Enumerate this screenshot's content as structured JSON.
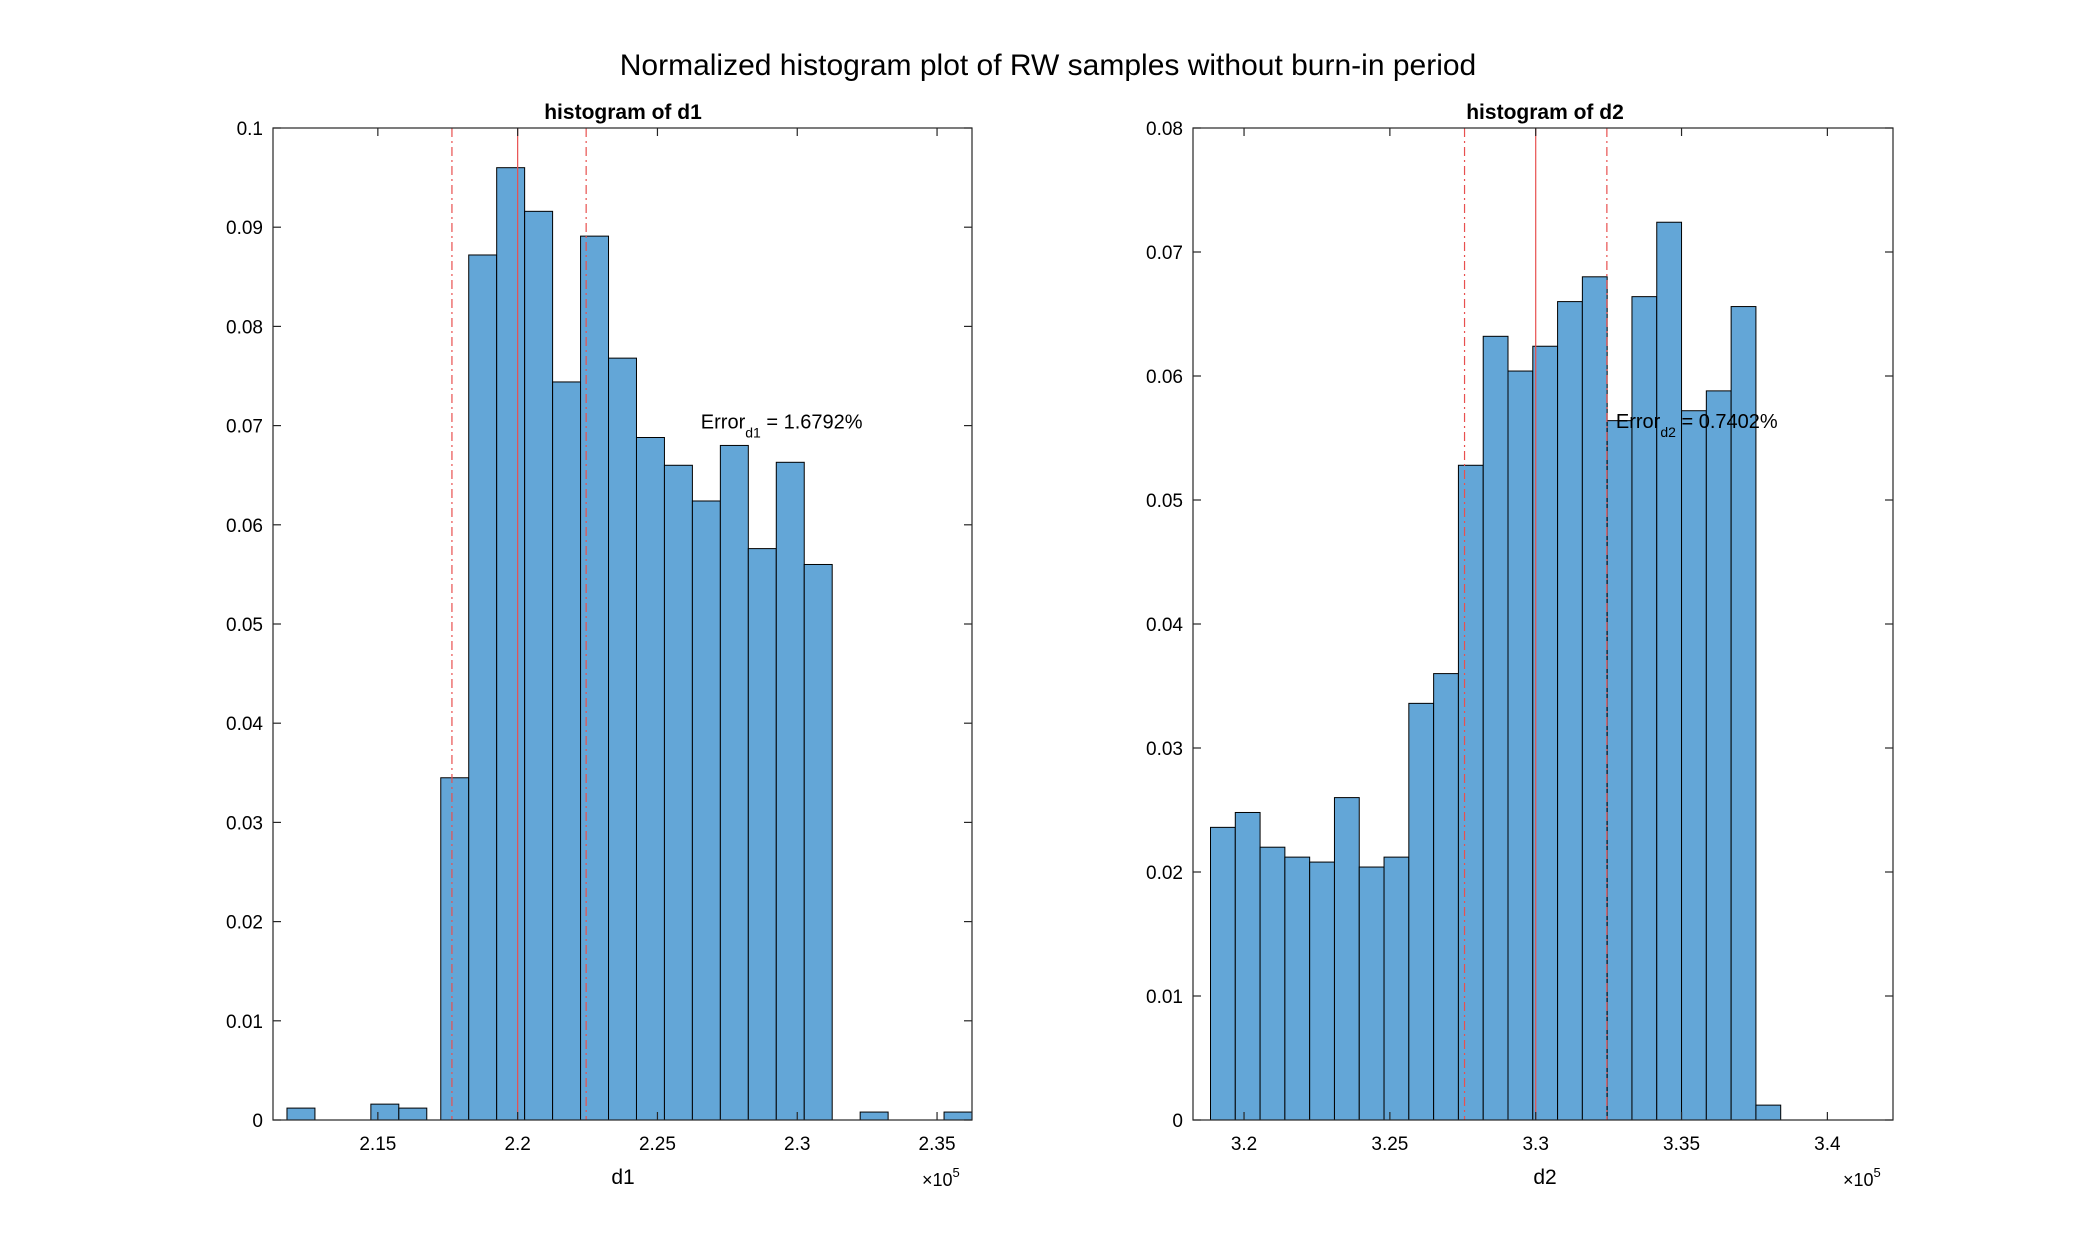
{
  "suptitle": "Normalized histogram plot of RW samples without burn-in period",
  "colors": {
    "bar_fill": "#63a6d7",
    "bar_edge": "#000000",
    "ref_line": "#e8504f",
    "axis": "#262626"
  },
  "chart_data": [
    {
      "type": "bar",
      "title": "histogram of d1",
      "xlabel": "d1",
      "ylabel": "",
      "exponent": {
        "base": "×10",
        "power": "5"
      },
      "xlim": [
        2.1125,
        2.3625
      ],
      "ylim": [
        0,
        0.1
      ],
      "bin_width": 0.01,
      "xticks": [
        2.15,
        2.2,
        2.25,
        2.3,
        2.35
      ],
      "xtick_labels": [
        "2.15",
        "2.2",
        "2.25",
        "2.3",
        "2.35"
      ],
      "yticks": [
        0,
        0.01,
        0.02,
        0.03,
        0.04,
        0.05,
        0.06,
        0.07,
        0.08,
        0.09,
        0.1
      ],
      "ytick_labels": [
        "0",
        "0.01",
        "0.02",
        "0.03",
        "0.04",
        "0.05",
        "0.06",
        "0.07",
        "0.08",
        "0.09",
        "0.1"
      ],
      "bins": [
        {
          "start": 2.1175,
          "value": 0.0012
        },
        {
          "start": 2.1475,
          "value": 0.0016
        },
        {
          "start": 2.1575,
          "value": 0.0012
        },
        {
          "start": 2.1725,
          "value": 0.0345
        },
        {
          "start": 2.1825,
          "value": 0.0872
        },
        {
          "start": 2.1925,
          "value": 0.096
        },
        {
          "start": 2.2025,
          "value": 0.0916
        },
        {
          "start": 2.2125,
          "value": 0.0744
        },
        {
          "start": 2.2225,
          "value": 0.0891
        },
        {
          "start": 2.2325,
          "value": 0.0768
        },
        {
          "start": 2.2425,
          "value": 0.0688
        },
        {
          "start": 2.2525,
          "value": 0.066
        },
        {
          "start": 2.2625,
          "value": 0.0624
        },
        {
          "start": 2.2725,
          "value": 0.068
        },
        {
          "start": 2.2825,
          "value": 0.0576
        },
        {
          "start": 2.2925,
          "value": 0.0663
        },
        {
          "start": 2.3025,
          "value": 0.056
        },
        {
          "start": 2.3225,
          "value": 0.0008
        },
        {
          "start": 2.3525,
          "value": 0.0008
        }
      ],
      "ref_lines": [
        {
          "x": 2.1765,
          "style": "dashdot"
        },
        {
          "x": 2.2,
          "style": "solid"
        },
        {
          "x": 2.2245,
          "style": "dashdot"
        }
      ],
      "annotation": {
        "main": "Error",
        "sub": "d1",
        "value": " = 1.6792%",
        "x": 2.2655,
        "y": 0.0697
      }
    },
    {
      "type": "bar",
      "title": "histogram of d2",
      "xlabel": "d2",
      "ylabel": "",
      "exponent": {
        "base": "×10",
        "power": "5"
      },
      "xlim": [
        3.1825,
        3.4225
      ],
      "ylim": [
        0,
        0.08
      ],
      "bin_width": 0.0085,
      "xticks": [
        3.2,
        3.25,
        3.3,
        3.35,
        3.4
      ],
      "xtick_labels": [
        "3.2",
        "3.25",
        "3.3",
        "3.35",
        "3.4"
      ],
      "yticks": [
        0,
        0.01,
        0.02,
        0.03,
        0.04,
        0.05,
        0.06,
        0.07,
        0.08
      ],
      "ytick_labels": [
        "0",
        "0.01",
        "0.02",
        "0.03",
        "0.04",
        "0.05",
        "0.06",
        "0.07",
        "0.08"
      ],
      "bins": [
        {
          "start": 3.1885,
          "value": 0.0236
        },
        {
          "start": 3.197,
          "value": 0.0248
        },
        {
          "start": 3.2055,
          "value": 0.022
        },
        {
          "start": 3.214,
          "value": 0.0212
        },
        {
          "start": 3.2225,
          "value": 0.0208
        },
        {
          "start": 3.231,
          "value": 0.026
        },
        {
          "start": 3.2395,
          "value": 0.0204
        },
        {
          "start": 3.248,
          "value": 0.0212
        },
        {
          "start": 3.2565,
          "value": 0.0336
        },
        {
          "start": 3.265,
          "value": 0.036
        },
        {
          "start": 3.2735,
          "value": 0.0528
        },
        {
          "start": 3.282,
          "value": 0.0632
        },
        {
          "start": 3.2905,
          "value": 0.0604
        },
        {
          "start": 3.299,
          "value": 0.0624
        },
        {
          "start": 3.3075,
          "value": 0.066
        },
        {
          "start": 3.316,
          "value": 0.068
        },
        {
          "start": 3.3245,
          "value": 0.0564
        },
        {
          "start": 3.333,
          "value": 0.0664
        },
        {
          "start": 3.3415,
          "value": 0.0724
        },
        {
          "start": 3.35,
          "value": 0.0572
        },
        {
          "start": 3.3585,
          "value": 0.0588
        },
        {
          "start": 3.367,
          "value": 0.0656
        },
        {
          "start": 3.3755,
          "value": 0.0012
        }
      ],
      "ref_lines": [
        {
          "x": 3.2756,
          "style": "dashdot"
        },
        {
          "x": 3.3,
          "style": "solid"
        },
        {
          "x": 3.3244,
          "style": "dashdot"
        }
      ],
      "annotation": {
        "main": "Error",
        "sub": "d2",
        "value": " = 0.7402%",
        "x": 3.3275,
        "y": 0.0558
      }
    }
  ]
}
